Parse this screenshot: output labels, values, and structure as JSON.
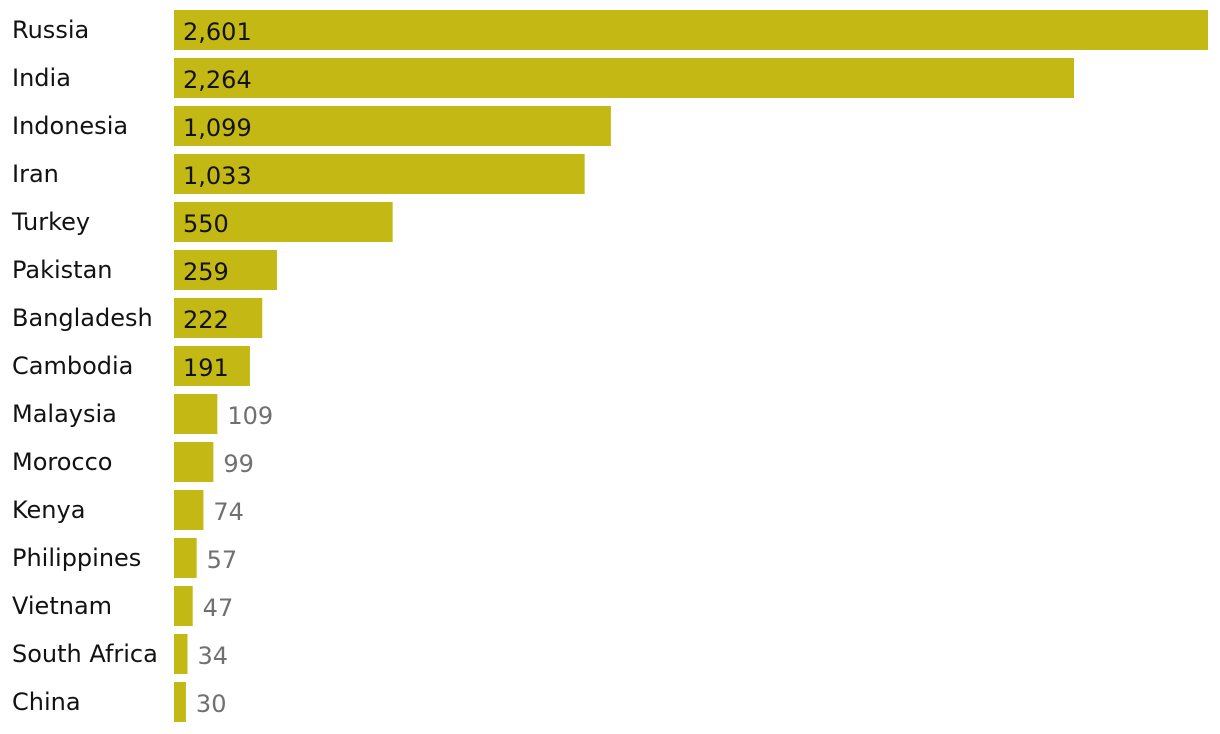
{
  "chart_data": {
    "type": "bar",
    "orientation": "horizontal",
    "categories": [
      "Russia",
      "India",
      "Indonesia",
      "Iran",
      "Turkey",
      "Pakistan",
      "Bangladesh",
      "Cambodia",
      "Malaysia",
      "Morocco",
      "Kenya",
      "Philippines",
      "Vietnam",
      "South Africa",
      "China"
    ],
    "values": [
      2601,
      2264,
      1099,
      1033,
      550,
      259,
      222,
      191,
      109,
      99,
      74,
      57,
      47,
      34,
      30
    ],
    "value_labels": [
      "2,601",
      "2,264",
      "1,099",
      "1,033",
      "550",
      "259",
      "222",
      "191",
      "109",
      "99",
      "74",
      "57",
      "47",
      "34",
      "30"
    ],
    "title": "",
    "xlabel": "",
    "ylabel": "",
    "xlim": [
      0,
      2601
    ],
    "grid": false,
    "legend": "none",
    "bar_color": "#c4b814",
    "label_inside_color": "#121212",
    "label_outside_color": "#707070"
  }
}
